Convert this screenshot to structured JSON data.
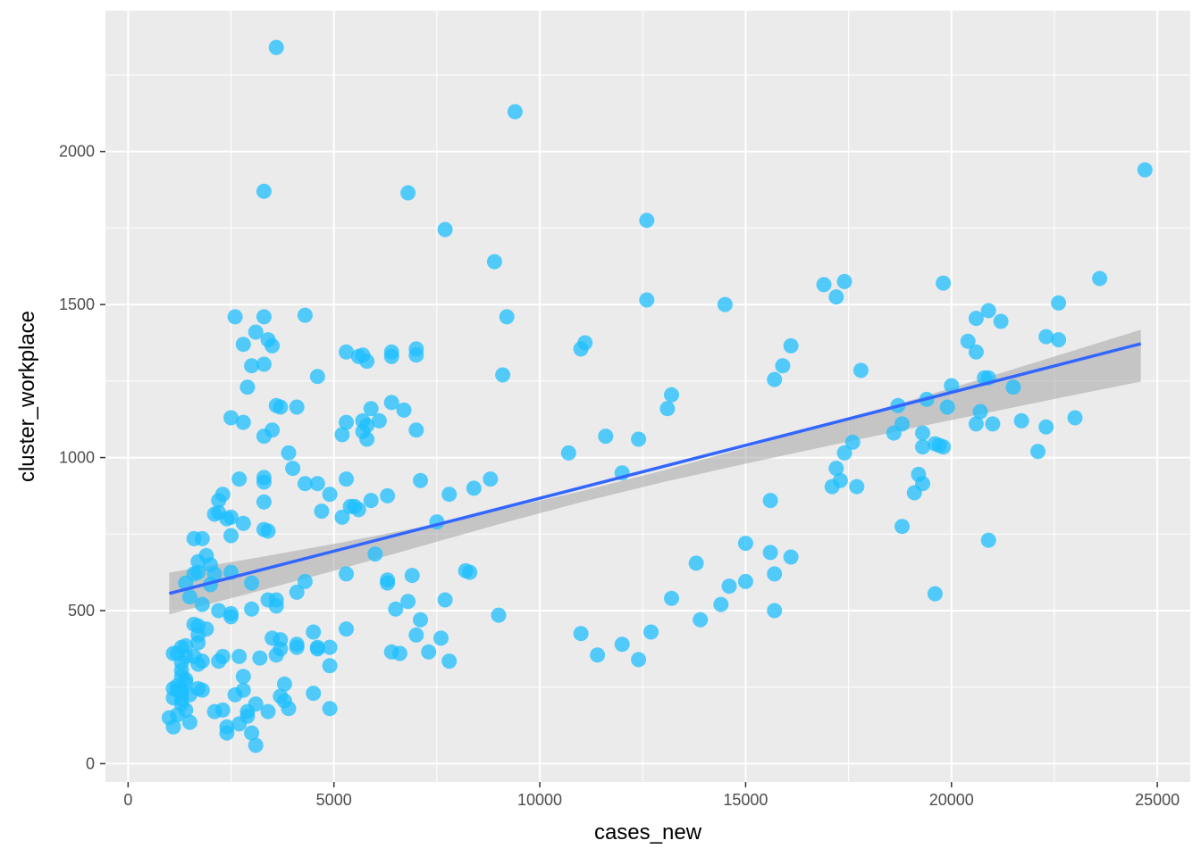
{
  "chart_data": {
    "type": "scatter",
    "xlabel": "cases_new",
    "ylabel": "cluster_workplace",
    "xlim": [
      -550,
      25800
    ],
    "ylim": [
      -60,
      2460
    ],
    "x_ticks": [
      0,
      5000,
      10000,
      15000,
      20000,
      25000
    ],
    "x_tick_labels": [
      "0",
      "5000",
      "10000",
      "15000",
      "20000",
      "25000"
    ],
    "y_ticks": [
      0,
      500,
      1000,
      1500,
      2000
    ],
    "y_tick_labels": [
      "0",
      "500",
      "1000",
      "1500",
      "2000"
    ],
    "grid": true,
    "panel_color": "#ebebeb",
    "point_color": "#1ebfff",
    "trend_color": "#3366ff",
    "band_color": "#a0a0a0",
    "trend_line": {
      "x": [
        1000,
        24600
      ],
      "y": [
        556,
        1372
      ]
    },
    "confidence_band": {
      "x": [
        1000,
        3000,
        5000,
        7000,
        9000,
        11000,
        13000,
        15000,
        17000,
        19000,
        21000,
        23000,
        24600
      ],
      "upper": [
        624,
        670,
        718,
        770,
        828,
        890,
        958,
        1032,
        1110,
        1187,
        1268,
        1351,
        1418
      ],
      "lower": [
        488,
        558,
        630,
        706,
        782,
        854,
        920,
        980,
        1038,
        1095,
        1150,
        1205,
        1248
      ]
    },
    "points": [
      [
        3600,
        2340
      ],
      [
        9400,
        2130
      ],
      [
        24700,
        1940
      ],
      [
        3300,
        1870
      ],
      [
        6800,
        1865
      ],
      [
        7700,
        1745
      ],
      [
        12600,
        1775
      ],
      [
        8900,
        1640
      ],
      [
        12600,
        1515
      ],
      [
        14500,
        1500
      ],
      [
        17400,
        1575
      ],
      [
        16900,
        1565
      ],
      [
        17200,
        1525
      ],
      [
        19800,
        1570
      ],
      [
        23600,
        1585
      ],
      [
        22600,
        1505
      ],
      [
        20900,
        1480
      ],
      [
        20600,
        1455
      ],
      [
        21200,
        1445
      ],
      [
        20400,
        1380
      ],
      [
        22300,
        1395
      ],
      [
        22600,
        1385
      ],
      [
        20600,
        1345
      ],
      [
        16100,
        1365
      ],
      [
        15900,
        1300
      ],
      [
        15700,
        1255
      ],
      [
        11100,
        1375
      ],
      [
        11000,
        1355
      ],
      [
        9200,
        1460
      ],
      [
        9100,
        1270
      ],
      [
        6400,
        1345
      ],
      [
        6400,
        1330
      ],
      [
        7000,
        1355
      ],
      [
        7000,
        1335
      ],
      [
        5300,
        1345
      ],
      [
        5600,
        1330
      ],
      [
        5700,
        1335
      ],
      [
        5800,
        1315
      ],
      [
        4300,
        1465
      ],
      [
        2600,
        1460
      ],
      [
        3300,
        1460
      ],
      [
        3100,
        1410
      ],
      [
        3400,
        1385
      ],
      [
        3500,
        1365
      ],
      [
        2800,
        1370
      ],
      [
        3000,
        1300
      ],
      [
        3300,
        1305
      ],
      [
        4600,
        1265
      ],
      [
        2900,
        1230
      ],
      [
        3600,
        1170
      ],
      [
        3700,
        1165
      ],
      [
        4100,
        1165
      ],
      [
        6400,
        1180
      ],
      [
        6700,
        1155
      ],
      [
        5900,
        1160
      ],
      [
        6100,
        1120
      ],
      [
        5800,
        1105
      ],
      [
        5700,
        1120
      ],
      [
        5700,
        1085
      ],
      [
        5300,
        1115
      ],
      [
        5200,
        1075
      ],
      [
        5800,
        1060
      ],
      [
        7000,
        1090
      ],
      [
        2500,
        1130
      ],
      [
        2800,
        1115
      ],
      [
        3500,
        1090
      ],
      [
        3300,
        1070
      ],
      [
        3900,
        1015
      ],
      [
        10700,
        1015
      ],
      [
        11600,
        1070
      ],
      [
        12400,
        1060
      ],
      [
        13200,
        1205
      ],
      [
        13100,
        1160
      ],
      [
        17800,
        1285
      ],
      [
        17600,
        1050
      ],
      [
        17400,
        1015
      ],
      [
        17200,
        965
      ],
      [
        17300,
        925
      ],
      [
        17100,
        905
      ],
      [
        17700,
        905
      ],
      [
        18600,
        1080
      ],
      [
        18800,
        1110
      ],
      [
        18700,
        1170
      ],
      [
        19400,
        1190
      ],
      [
        19300,
        1080
      ],
      [
        19300,
        1035
      ],
      [
        19600,
        1045
      ],
      [
        19700,
        1040
      ],
      [
        19800,
        1035
      ],
      [
        20000,
        1235
      ],
      [
        19900,
        1165
      ],
      [
        20800,
        1260
      ],
      [
        20900,
        1260
      ],
      [
        20700,
        1150
      ],
      [
        20600,
        1110
      ],
      [
        21000,
        1110
      ],
      [
        21500,
        1230
      ],
      [
        21700,
        1120
      ],
      [
        22100,
        1020
      ],
      [
        22300,
        1100
      ],
      [
        23000,
        1130
      ],
      [
        19200,
        945
      ],
      [
        19100,
        885
      ],
      [
        19300,
        915
      ],
      [
        18800,
        775
      ],
      [
        19600,
        555
      ],
      [
        20900,
        730
      ],
      [
        12000,
        950
      ],
      [
        8800,
        930
      ],
      [
        8400,
        900
      ],
      [
        7800,
        880
      ],
      [
        7100,
        925
      ],
      [
        6300,
        875
      ],
      [
        5900,
        860
      ],
      [
        5600,
        830
      ],
      [
        5400,
        840
      ],
      [
        5300,
        930
      ],
      [
        5200,
        805
      ],
      [
        4900,
        880
      ],
      [
        4600,
        915
      ],
      [
        4300,
        915
      ],
      [
        4000,
        965
      ],
      [
        4700,
        825
      ],
      [
        7500,
        790
      ],
      [
        3300,
        935
      ],
      [
        3300,
        920
      ],
      [
        3300,
        855
      ],
      [
        3400,
        760
      ],
      [
        3300,
        765
      ],
      [
        2700,
        930
      ],
      [
        2300,
        880
      ],
      [
        2200,
        860
      ],
      [
        2100,
        815
      ],
      [
        2200,
        820
      ],
      [
        2400,
        800
      ],
      [
        2500,
        805
      ],
      [
        2800,
        785
      ],
      [
        2500,
        745
      ],
      [
        1600,
        735
      ],
      [
        1800,
        735
      ],
      [
        6000,
        685
      ],
      [
        6300,
        600
      ],
      [
        6300,
        590
      ],
      [
        6900,
        615
      ],
      [
        8300,
        625
      ],
      [
        8200,
        630
      ],
      [
        7700,
        535
      ],
      [
        6800,
        530
      ],
      [
        7100,
        470
      ],
      [
        6500,
        505
      ],
      [
        7000,
        420
      ],
      [
        7300,
        365
      ],
      [
        7600,
        410
      ],
      [
        7800,
        335
      ],
      [
        6400,
        365
      ],
      [
        6600,
        360
      ],
      [
        5300,
        620
      ],
      [
        5500,
        840
      ],
      [
        5300,
        440
      ],
      [
        4900,
        380
      ],
      [
        4600,
        380
      ],
      [
        4500,
        430
      ],
      [
        4300,
        595
      ],
      [
        4100,
        560
      ],
      [
        3600,
        535
      ],
      [
        3600,
        515
      ],
      [
        3400,
        535
      ],
      [
        3700,
        405
      ],
      [
        3500,
        410
      ],
      [
        3700,
        375
      ],
      [
        3600,
        355
      ],
      [
        4100,
        390
      ],
      [
        4100,
        380
      ],
      [
        4600,
        375
      ],
      [
        3800,
        260
      ],
      [
        3700,
        220
      ],
      [
        3800,
        205
      ],
      [
        3900,
        180
      ],
      [
        4500,
        230
      ],
      [
        4900,
        180
      ],
      [
        4900,
        320
      ],
      [
        3400,
        170
      ],
      [
        3100,
        195
      ],
      [
        2900,
        170
      ],
      [
        2900,
        155
      ],
      [
        3000,
        100
      ],
      [
        3100,
        60
      ],
      [
        2700,
        130
      ],
      [
        2800,
        240
      ],
      [
        2800,
        285
      ],
      [
        2600,
        225
      ],
      [
        2400,
        120
      ],
      [
        2400,
        100
      ],
      [
        2300,
        175
      ],
      [
        2100,
        170
      ],
      [
        2500,
        480
      ],
      [
        2500,
        490
      ],
      [
        2200,
        500
      ],
      [
        2300,
        350
      ],
      [
        2200,
        335
      ],
      [
        2000,
        650
      ],
      [
        2000,
        585
      ],
      [
        1900,
        680
      ],
      [
        2100,
        620
      ],
      [
        2500,
        625
      ],
      [
        3000,
        590
      ],
      [
        3000,
        505
      ],
      [
        3200,
        345
      ],
      [
        2700,
        350
      ],
      [
        1700,
        660
      ],
      [
        1700,
        625
      ],
      [
        1600,
        620
      ],
      [
        1400,
        590
      ],
      [
        1500,
        545
      ],
      [
        1800,
        520
      ],
      [
        1600,
        455
      ],
      [
        1700,
        450
      ],
      [
        1700,
        420
      ],
      [
        1900,
        440
      ],
      [
        1700,
        395
      ],
      [
        1600,
        350
      ],
      [
        1800,
        335
      ],
      [
        1700,
        325
      ],
      [
        1400,
        385
      ],
      [
        1300,
        380
      ],
      [
        1400,
        350
      ],
      [
        1300,
        330
      ],
      [
        1300,
        305
      ],
      [
        1300,
        285
      ],
      [
        1400,
        265
      ],
      [
        1200,
        255
      ],
      [
        1200,
        240
      ],
      [
        1300,
        230
      ],
      [
        1300,
        210
      ],
      [
        1300,
        195
      ],
      [
        1400,
        175
      ],
      [
        1200,
        360
      ],
      [
        1100,
        360
      ],
      [
        1100,
        245
      ],
      [
        1100,
        215
      ],
      [
        1200,
        160
      ],
      [
        1100,
        120
      ],
      [
        1000,
        150
      ],
      [
        1500,
        135
      ],
      [
        1700,
        245
      ],
      [
        1800,
        240
      ],
      [
        1500,
        225
      ],
      [
        1400,
        275
      ],
      [
        1300,
        240
      ],
      [
        9000,
        485
      ],
      [
        11000,
        425
      ],
      [
        11400,
        355
      ],
      [
        12000,
        390
      ],
      [
        12400,
        340
      ],
      [
        12700,
        430
      ],
      [
        13200,
        540
      ],
      [
        13800,
        655
      ],
      [
        13900,
        470
      ],
      [
        14400,
        520
      ],
      [
        14600,
        580
      ],
      [
        15000,
        720
      ],
      [
        15000,
        595
      ],
      [
        15600,
        690
      ],
      [
        15600,
        860
      ],
      [
        15700,
        620
      ],
      [
        16100,
        675
      ],
      [
        15700,
        500
      ]
    ]
  }
}
